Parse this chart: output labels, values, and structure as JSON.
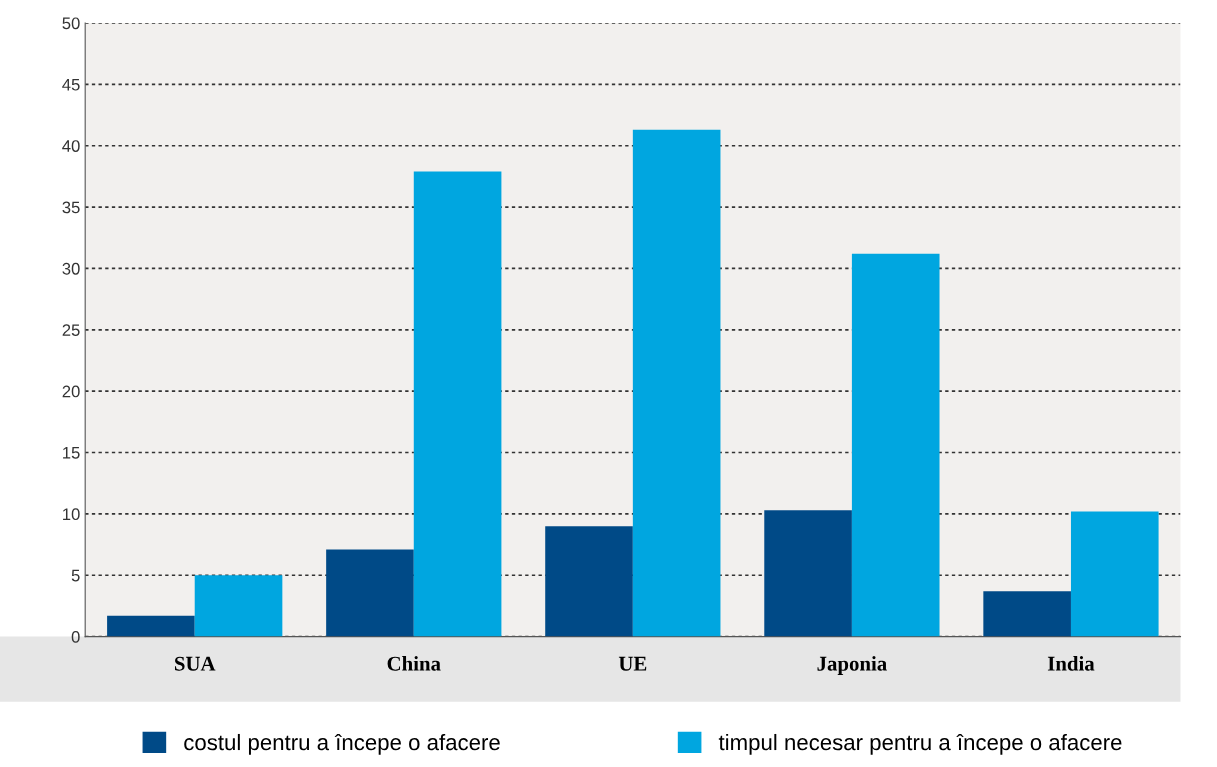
{
  "chart_data": {
    "type": "bar",
    "categories": [
      "SUA",
      "China",
      "UE",
      "Japonia",
      "India"
    ],
    "series": [
      {
        "name": "costul pentru a începe o afacere",
        "color": "#004a87",
        "values": [
          1.7,
          7.1,
          9.0,
          10.3,
          3.7
        ]
      },
      {
        "name": "timpul necesar pentru a începe o afacere",
        "color": "#00a6e0",
        "values": [
          5.0,
          37.9,
          41.3,
          31.2,
          10.2
        ]
      }
    ],
    "ylim": [
      0,
      50
    ],
    "yticks": [
      0,
      5,
      10,
      15,
      20,
      25,
      30,
      35,
      40,
      45,
      50
    ],
    "grid": "y",
    "legend": "bottom"
  }
}
